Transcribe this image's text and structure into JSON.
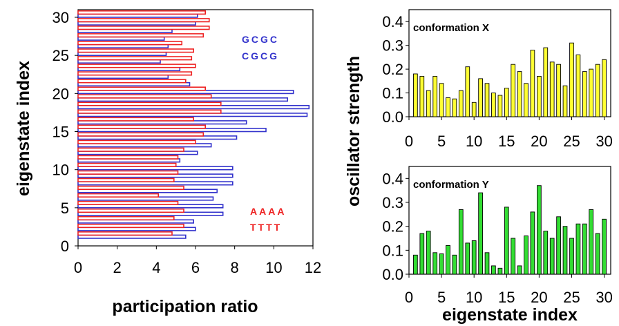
{
  "chart_data": [
    {
      "type": "bar",
      "orientation": "horizontal",
      "xlabel": "participation ratio",
      "ylabel": "eigenstate index",
      "xlim": [
        0,
        12
      ],
      "ylim": [
        0,
        31
      ],
      "xticks": [
        0,
        2,
        4,
        6,
        8,
        10,
        12
      ],
      "yticks": [
        0,
        5,
        10,
        15,
        20,
        25,
        30
      ],
      "categories": [
        1,
        2,
        3,
        4,
        5,
        6,
        7,
        8,
        9,
        10,
        11,
        12,
        13,
        14,
        15,
        16,
        17,
        18,
        19,
        20,
        21,
        22,
        23,
        24,
        25,
        26,
        27,
        28,
        29,
        30
      ],
      "series": [
        {
          "color": "#3333cc",
          "label_top": "GCGC",
          "label_bottom": "CGCG",
          "values": [
            5.5,
            6.0,
            5.9,
            7.4,
            7.4,
            6.9,
            7.1,
            7.9,
            7.9,
            7.9,
            5.2,
            6.1,
            6.8,
            8.1,
            9.6,
            8.6,
            11.7,
            11.8,
            10.7,
            11.0,
            5.7,
            4.6,
            5.2,
            4.2,
            4.5,
            4.6,
            4.4,
            4.8,
            6.0,
            6.1
          ]
        },
        {
          "color": "#ee2222",
          "label_top": "AAAA",
          "label_bottom": "TTTT",
          "values": [
            4.8,
            5.4,
            4.9,
            5.4,
            5.1,
            4.1,
            5.4,
            4.9,
            5.1,
            5.0,
            5.1,
            5.4,
            6.0,
            6.4,
            6.5,
            5.9,
            7.3,
            7.3,
            6.8,
            6.5,
            5.5,
            5.8,
            6.0,
            5.8,
            5.9,
            5.3,
            6.4,
            6.7,
            6.7,
            6.5
          ]
        }
      ]
    },
    {
      "type": "bar",
      "title": "conformation X",
      "color": "#ffff33",
      "ylabel": "oscillator strength",
      "xlim": [
        0,
        31
      ],
      "ylim": [
        0,
        0.45
      ],
      "xticks": [
        0,
        5,
        10,
        15,
        20,
        25,
        30
      ],
      "yticks": [
        "0.0",
        "0.1",
        "0.2",
        "0.3",
        "0.4"
      ],
      "x": [
        1,
        2,
        3,
        4,
        5,
        6,
        7,
        8,
        9,
        10,
        11,
        12,
        13,
        14,
        15,
        16,
        17,
        18,
        19,
        20,
        21,
        22,
        23,
        24,
        25,
        26,
        27,
        28,
        29,
        30
      ],
      "values": [
        0.18,
        0.17,
        0.11,
        0.17,
        0.14,
        0.08,
        0.075,
        0.11,
        0.21,
        0.06,
        0.16,
        0.14,
        0.1,
        0.09,
        0.12,
        0.22,
        0.19,
        0.14,
        0.28,
        0.17,
        0.29,
        0.23,
        0.22,
        0.13,
        0.31,
        0.26,
        0.19,
        0.2,
        0.22,
        0.24
      ]
    },
    {
      "type": "bar",
      "title": "conformation Y",
      "color": "#33dd33",
      "xlabel": "eigenstate index",
      "xlim": [
        0,
        31
      ],
      "ylim": [
        0,
        0.45
      ],
      "xticks": [
        0,
        5,
        10,
        15,
        20,
        25,
        30
      ],
      "yticks": [
        "0.0",
        "0.1",
        "0.2",
        "0.3",
        "0.4"
      ],
      "x": [
        1,
        2,
        3,
        4,
        5,
        6,
        7,
        8,
        9,
        10,
        11,
        12,
        13,
        14,
        15,
        16,
        17,
        18,
        19,
        20,
        21,
        22,
        23,
        24,
        25,
        26,
        27,
        28,
        29,
        30
      ],
      "values": [
        0.08,
        0.17,
        0.18,
        0.09,
        0.085,
        0.12,
        0.08,
        0.27,
        0.13,
        0.14,
        0.34,
        0.09,
        0.035,
        0.025,
        0.28,
        0.15,
        0.035,
        0.16,
        0.26,
        0.37,
        0.18,
        0.15,
        0.24,
        0.2,
        0.15,
        0.21,
        0.21,
        0.27,
        0.17,
        0.23
      ]
    }
  ]
}
